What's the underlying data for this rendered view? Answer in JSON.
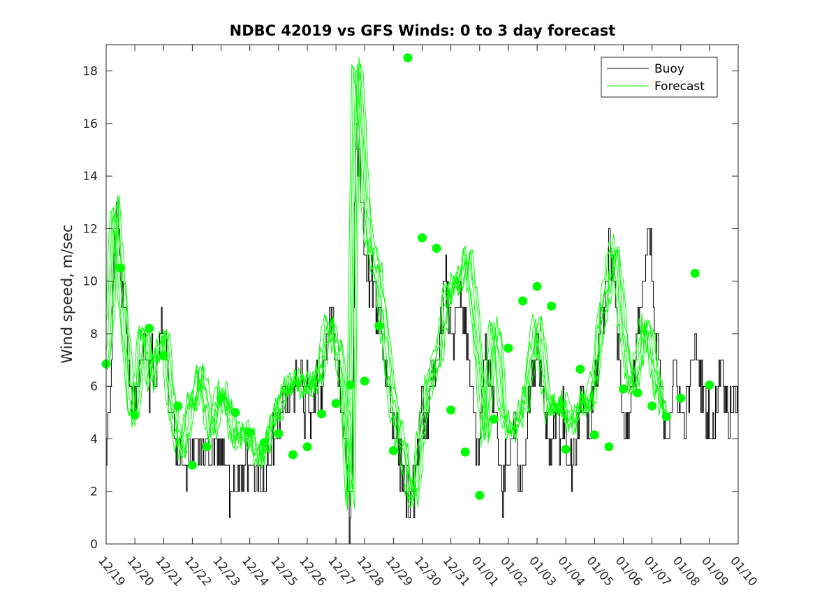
{
  "chart_data": {
    "type": "line",
    "title": "NDBC 42019 vs GFS Winds: 0 to 3 day forecast",
    "xlabel": "",
    "ylabel": "Wind speed, m/sec",
    "xlim": [
      0,
      22
    ],
    "ylim": [
      0,
      19
    ],
    "x_tick_labels": [
      "12/19",
      "12/20",
      "12/21",
      "12/22",
      "12/23",
      "12/24",
      "12/25",
      "12/26",
      "12/27",
      "12/28",
      "12/29",
      "12/30",
      "12/31",
      "01/01",
      "01/02",
      "01/03",
      "01/04",
      "01/05",
      "01/06",
      "01/07",
      "01/08",
      "01/09",
      "01/10"
    ],
    "y_ticks": [
      0,
      2,
      4,
      6,
      8,
      10,
      12,
      14,
      16,
      18
    ],
    "legend": {
      "location": "top-right",
      "entries": [
        "Buoy",
        "Forecast"
      ]
    },
    "colors": {
      "buoy": "#000000",
      "forecast": "#00ff00",
      "markers": "#00ff00"
    },
    "buoy_profile": [
      [
        0.0,
        3
      ],
      [
        0.1,
        5
      ],
      [
        0.2,
        8
      ],
      [
        0.3,
        12
      ],
      [
        0.35,
        13
      ],
      [
        0.45,
        11
      ],
      [
        0.55,
        10
      ],
      [
        0.7,
        8
      ],
      [
        0.8,
        6
      ],
      [
        0.9,
        5
      ],
      [
        1.0,
        5
      ],
      [
        1.1,
        6
      ],
      [
        1.2,
        7
      ],
      [
        1.3,
        8
      ],
      [
        1.4,
        7
      ],
      [
        1.5,
        6
      ],
      [
        1.6,
        7
      ],
      [
        1.7,
        6
      ],
      [
        1.8,
        7
      ],
      [
        1.9,
        8
      ],
      [
        2.05,
        8
      ],
      [
        2.15,
        6
      ],
      [
        2.25,
        5
      ],
      [
        2.35,
        4
      ],
      [
        2.5,
        3
      ],
      [
        2.6,
        4
      ],
      [
        2.7,
        3
      ],
      [
        2.8,
        2
      ],
      [
        2.9,
        3
      ],
      [
        3.0,
        3
      ],
      [
        3.1,
        4
      ],
      [
        3.2,
        3
      ],
      [
        3.3,
        4
      ],
      [
        3.4,
        3
      ],
      [
        3.5,
        4
      ],
      [
        3.6,
        3
      ],
      [
        3.7,
        4
      ],
      [
        3.8,
        4
      ],
      [
        3.9,
        3
      ],
      [
        4.0,
        4
      ],
      [
        4.1,
        3
      ],
      [
        4.2,
        3
      ],
      [
        4.3,
        2
      ],
      [
        4.4,
        3
      ],
      [
        4.5,
        2
      ],
      [
        4.6,
        3
      ],
      [
        4.7,
        2
      ],
      [
        4.8,
        3
      ],
      [
        4.9,
        3
      ],
      [
        5.0,
        2
      ],
      [
        5.1,
        3
      ],
      [
        5.2,
        2
      ],
      [
        5.3,
        3
      ],
      [
        5.4,
        2
      ],
      [
        5.5,
        2
      ],
      [
        5.6,
        3
      ],
      [
        5.7,
        3
      ],
      [
        5.8,
        4
      ],
      [
        5.9,
        4
      ],
      [
        6.0,
        5
      ],
      [
        6.1,
        5
      ],
      [
        6.2,
        6
      ],
      [
        6.3,
        5
      ],
      [
        6.4,
        6
      ],
      [
        6.5,
        5
      ],
      [
        6.6,
        6
      ],
      [
        6.7,
        6
      ],
      [
        6.8,
        6
      ],
      [
        6.9,
        5
      ],
      [
        7.0,
        6
      ],
      [
        7.1,
        5
      ],
      [
        7.2,
        5
      ],
      [
        7.3,
        6
      ],
      [
        7.4,
        5
      ],
      [
        7.5,
        6
      ],
      [
        7.6,
        7
      ],
      [
        7.7,
        8
      ],
      [
        7.8,
        9
      ],
      [
        7.9,
        8
      ],
      [
        8.0,
        7
      ],
      [
        8.1,
        6
      ],
      [
        8.2,
        5
      ],
      [
        8.3,
        4
      ],
      [
        8.4,
        2
      ],
      [
        8.45,
        1
      ],
      [
        8.5,
        0
      ],
      [
        8.55,
        2
      ],
      [
        8.6,
        8
      ],
      [
        8.65,
        14
      ],
      [
        8.7,
        16
      ],
      [
        8.75,
        15
      ],
      [
        8.85,
        14
      ],
      [
        8.95,
        12
      ],
      [
        9.05,
        10
      ],
      [
        9.15,
        10
      ],
      [
        9.3,
        10
      ],
      [
        9.4,
        9
      ],
      [
        9.5,
        9
      ],
      [
        9.6,
        8
      ],
      [
        9.7,
        7
      ],
      [
        9.8,
        6
      ],
      [
        9.9,
        5
      ],
      [
        10.0,
        5
      ],
      [
        10.1,
        4
      ],
      [
        10.2,
        3
      ],
      [
        10.3,
        3
      ],
      [
        10.4,
        2
      ],
      [
        10.5,
        2
      ],
      [
        10.6,
        1
      ],
      [
        10.7,
        2
      ],
      [
        10.8,
        3
      ],
      [
        10.9,
        4
      ],
      [
        11.0,
        5
      ],
      [
        11.1,
        5
      ],
      [
        11.2,
        5
      ],
      [
        11.3,
        6
      ],
      [
        11.4,
        6
      ],
      [
        11.5,
        7
      ],
      [
        11.6,
        8
      ],
      [
        11.7,
        9
      ],
      [
        11.8,
        10
      ],
      [
        11.9,
        9
      ],
      [
        12.0,
        8
      ],
      [
        12.1,
        8
      ],
      [
        12.2,
        9
      ],
      [
        12.3,
        9
      ],
      [
        12.4,
        9
      ],
      [
        12.5,
        8
      ],
      [
        12.6,
        7
      ],
      [
        12.7,
        6
      ],
      [
        12.8,
        5
      ],
      [
        12.9,
        3
      ],
      [
        13.0,
        4
      ],
      [
        13.1,
        6
      ],
      [
        13.2,
        8
      ],
      [
        13.3,
        7
      ],
      [
        13.4,
        6
      ],
      [
        13.5,
        5
      ],
      [
        13.6,
        4
      ],
      [
        13.7,
        3
      ],
      [
        13.8,
        2
      ],
      [
        13.9,
        3
      ],
      [
        14.0,
        3
      ],
      [
        14.1,
        4
      ],
      [
        14.2,
        5
      ],
      [
        14.3,
        3
      ],
      [
        14.4,
        2
      ],
      [
        14.5,
        3
      ],
      [
        14.6,
        4
      ],
      [
        14.7,
        5
      ],
      [
        14.8,
        6
      ],
      [
        14.9,
        7
      ],
      [
        15.0,
        8
      ],
      [
        15.1,
        7
      ],
      [
        15.2,
        6
      ],
      [
        15.3,
        5
      ],
      [
        15.4,
        4
      ],
      [
        15.5,
        4
      ],
      [
        15.6,
        5
      ],
      [
        15.7,
        5
      ],
      [
        15.8,
        4
      ],
      [
        15.9,
        5
      ],
      [
        16.0,
        4
      ],
      [
        16.1,
        3
      ],
      [
        16.2,
        3
      ],
      [
        16.3,
        3
      ],
      [
        16.4,
        4
      ],
      [
        16.5,
        5
      ],
      [
        16.6,
        5
      ],
      [
        16.7,
        5
      ],
      [
        16.8,
        4
      ],
      [
        16.9,
        5
      ],
      [
        17.0,
        6
      ],
      [
        17.1,
        7
      ],
      [
        17.2,
        8
      ],
      [
        17.3,
        9
      ],
      [
        17.4,
        10
      ],
      [
        17.5,
        11
      ],
      [
        17.6,
        11
      ],
      [
        17.7,
        10
      ],
      [
        17.8,
        8
      ],
      [
        17.9,
        6
      ],
      [
        18.0,
        5
      ],
      [
        18.1,
        4
      ],
      [
        18.2,
        5
      ],
      [
        18.3,
        6
      ],
      [
        18.4,
        7
      ],
      [
        18.5,
        8
      ],
      [
        18.6,
        9
      ],
      [
        18.7,
        10
      ],
      [
        18.8,
        11
      ],
      [
        18.9,
        12
      ],
      [
        19.0,
        10
      ],
      [
        19.1,
        8
      ],
      [
        19.2,
        7
      ],
      [
        19.3,
        6
      ],
      [
        19.4,
        5
      ],
      [
        19.5,
        4
      ],
      [
        19.6,
        5
      ],
      [
        19.7,
        6
      ],
      [
        19.8,
        7
      ],
      [
        19.9,
        6
      ],
      [
        20.0,
        5
      ],
      [
        20.1,
        5
      ],
      [
        20.2,
        5
      ],
      [
        20.3,
        6
      ],
      [
        20.4,
        7
      ],
      [
        20.5,
        8
      ],
      [
        20.6,
        7
      ],
      [
        20.7,
        6
      ],
      [
        20.8,
        6
      ],
      [
        20.9,
        5
      ],
      [
        21.0,
        5
      ],
      [
        21.1,
        4
      ],
      [
        21.2,
        5
      ],
      [
        21.3,
        6
      ],
      [
        21.4,
        7
      ],
      [
        21.5,
        6
      ],
      [
        21.6,
        5
      ],
      [
        21.7,
        5
      ],
      [
        21.8,
        6
      ],
      [
        22.0,
        5
      ]
    ],
    "forecast_profile": [
      [
        0.0,
        6.8
      ],
      [
        0.15,
        9
      ],
      [
        0.3,
        13
      ],
      [
        0.45,
        11
      ],
      [
        0.6,
        9
      ],
      [
        0.8,
        6
      ],
      [
        0.95,
        4.7
      ],
      [
        1.1,
        6
      ],
      [
        1.25,
        8
      ],
      [
        1.4,
        8
      ],
      [
        1.55,
        6
      ],
      [
        1.7,
        7
      ],
      [
        1.9,
        7.5
      ],
      [
        2.05,
        8
      ],
      [
        2.2,
        6
      ],
      [
        2.35,
        5
      ],
      [
        2.5,
        4
      ],
      [
        2.65,
        3.5
      ],
      [
        2.8,
        4.5
      ],
      [
        2.95,
        5.5
      ],
      [
        3.1,
        5.5
      ],
      [
        3.25,
        6.5
      ],
      [
        3.4,
        6
      ],
      [
        3.55,
        5
      ],
      [
        3.7,
        4
      ],
      [
        3.85,
        5
      ],
      [
        4.0,
        6
      ],
      [
        4.15,
        5.5
      ],
      [
        4.3,
        5
      ],
      [
        4.45,
        4
      ],
      [
        4.6,
        4
      ],
      [
        4.75,
        4.5
      ],
      [
        4.9,
        4.2
      ],
      [
        5.05,
        4
      ],
      [
        5.2,
        3.5
      ],
      [
        5.35,
        3.2
      ],
      [
        5.5,
        3.8
      ],
      [
        5.65,
        4
      ],
      [
        5.8,
        4.5
      ],
      [
        5.95,
        5
      ],
      [
        6.1,
        5.5
      ],
      [
        6.25,
        5.8
      ],
      [
        6.4,
        6
      ],
      [
        6.55,
        6.2
      ],
      [
        6.7,
        6.3
      ],
      [
        6.85,
        6
      ],
      [
        7.0,
        5.8
      ],
      [
        7.15,
        6.2
      ],
      [
        7.3,
        6
      ],
      [
        7.45,
        6.5
      ],
      [
        7.6,
        7.5
      ],
      [
        7.75,
        8.5
      ],
      [
        7.9,
        8
      ],
      [
        8.05,
        7.5
      ],
      [
        8.2,
        6.5
      ],
      [
        8.35,
        4.5
      ],
      [
        8.5,
        1
      ],
      [
        8.6,
        11
      ],
      [
        8.7,
        18.5
      ],
      [
        8.85,
        17
      ],
      [
        9.0,
        13.5
      ],
      [
        9.15,
        11.5
      ],
      [
        9.3,
        11
      ],
      [
        9.45,
        10.5
      ],
      [
        9.6,
        9
      ],
      [
        9.75,
        7.5
      ],
      [
        9.9,
        6
      ],
      [
        10.05,
        5
      ],
      [
        10.2,
        4
      ],
      [
        10.35,
        3.5
      ],
      [
        10.5,
        2.5
      ],
      [
        10.65,
        1.5
      ],
      [
        10.8,
        2.5
      ],
      [
        10.95,
        4
      ],
      [
        11.1,
        5
      ],
      [
        11.25,
        6
      ],
      [
        11.4,
        6.5
      ],
      [
        11.55,
        7
      ],
      [
        11.7,
        8
      ],
      [
        11.85,
        9.5
      ],
      [
        12.0,
        9.5
      ],
      [
        12.15,
        10
      ],
      [
        12.3,
        9.8
      ],
      [
        12.45,
        10.5
      ],
      [
        12.6,
        11
      ],
      [
        12.75,
        9.5
      ],
      [
        12.9,
        8
      ],
      [
        13.05,
        6
      ],
      [
        13.2,
        4
      ],
      [
        13.35,
        6.5
      ],
      [
        13.5,
        8.5
      ],
      [
        13.65,
        7.5
      ],
      [
        13.8,
        5
      ],
      [
        13.95,
        4.5
      ],
      [
        14.1,
        4.2
      ],
      [
        14.25,
        4.5
      ],
      [
        14.4,
        5
      ],
      [
        14.55,
        5.2
      ],
      [
        14.7,
        6
      ],
      [
        14.85,
        7.5
      ],
      [
        15.0,
        8.5
      ],
      [
        15.15,
        7.5
      ],
      [
        15.3,
        6
      ],
      [
        15.45,
        5
      ],
      [
        15.6,
        5.5
      ],
      [
        15.75,
        5
      ],
      [
        15.9,
        5.5
      ],
      [
        16.05,
        4.8
      ],
      [
        16.2,
        4.5
      ],
      [
        16.35,
        5
      ],
      [
        16.5,
        5.3
      ],
      [
        16.65,
        5.5
      ],
      [
        16.8,
        5.2
      ],
      [
        16.95,
        6
      ],
      [
        17.1,
        7
      ],
      [
        17.25,
        8.5
      ],
      [
        17.4,
        9.5
      ],
      [
        17.55,
        10.5
      ],
      [
        17.7,
        11.5
      ],
      [
        17.85,
        10
      ],
      [
        18.0,
        8
      ],
      [
        18.15,
        7
      ],
      [
        18.3,
        6
      ],
      [
        18.45,
        6.5
      ],
      [
        18.6,
        7.5
      ],
      [
        18.75,
        8.5
      ],
      [
        18.9,
        8
      ],
      [
        19.05,
        7
      ],
      [
        19.2,
        6
      ],
      [
        19.35,
        5.5
      ],
      [
        19.5,
        5
      ]
    ],
    "forecast_markers": [
      [
        0.0,
        6.85
      ],
      [
        0.5,
        10.5
      ],
      [
        1.0,
        4.9
      ],
      [
        1.5,
        8.2
      ],
      [
        2.0,
        7.15
      ],
      [
        2.5,
        5.25
      ],
      [
        3.0,
        3.0
      ],
      [
        3.5,
        3.7
      ],
      [
        4.0,
        5.55
      ],
      [
        4.5,
        5.0
      ],
      [
        5.0,
        4.25
      ],
      [
        5.5,
        3.85
      ],
      [
        6.0,
        4.2
      ],
      [
        6.5,
        3.4
      ],
      [
        7.0,
        3.7
      ],
      [
        7.5,
        4.95
      ],
      [
        8.0,
        5.35
      ],
      [
        8.5,
        6.05
      ],
      [
        9.0,
        6.2
      ],
      [
        9.5,
        8.3
      ],
      [
        10.0,
        3.55
      ],
      [
        10.5,
        18.5
      ],
      [
        11.0,
        11.65
      ],
      [
        11.5,
        11.25
      ],
      [
        12.0,
        5.1
      ],
      [
        12.5,
        3.5
      ],
      [
        13.0,
        1.85
      ],
      [
        13.5,
        4.75
      ],
      [
        14.0,
        7.45
      ],
      [
        14.5,
        9.25
      ],
      [
        15.0,
        9.8
      ],
      [
        15.5,
        9.05
      ],
      [
        16.0,
        3.6
      ],
      [
        16.5,
        6.65
      ],
      [
        17.0,
        4.15
      ],
      [
        17.5,
        3.7
      ],
      [
        18.0,
        5.9
      ],
      [
        18.5,
        5.75
      ],
      [
        19.0,
        5.25
      ],
      [
        19.5,
        4.85
      ],
      [
        20.0,
        5.55
      ],
      [
        20.5,
        10.3
      ],
      [
        21.0,
        6.05
      ]
    ]
  }
}
